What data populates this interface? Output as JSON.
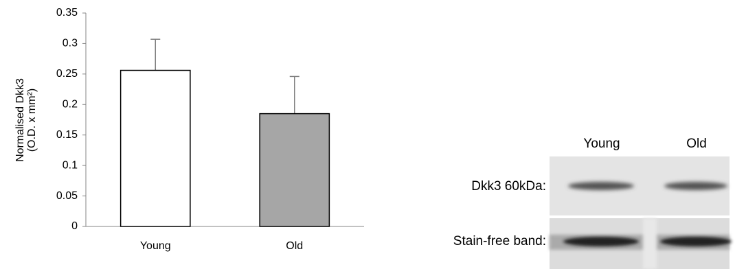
{
  "chart_data": {
    "type": "bar",
    "ylabel": [
      "Normalised Dkk3",
      "(O.D. x mm²)"
    ],
    "categories": [
      "Young",
      "Old"
    ],
    "values": [
      0.256,
      0.185
    ],
    "errors": [
      0.051,
      0.061
    ],
    "colors": [
      "#ffffff",
      "#a6a6a6"
    ],
    "ylim": [
      0,
      0.35
    ],
    "yticks": [
      0,
      0.05,
      0.1,
      0.15,
      0.2,
      0.25,
      0.3,
      0.35
    ]
  },
  "blot": {
    "lanes": [
      "Young",
      "Old"
    ],
    "rows": [
      "Dkk3 60kDa:",
      "Stain-free band:"
    ]
  }
}
